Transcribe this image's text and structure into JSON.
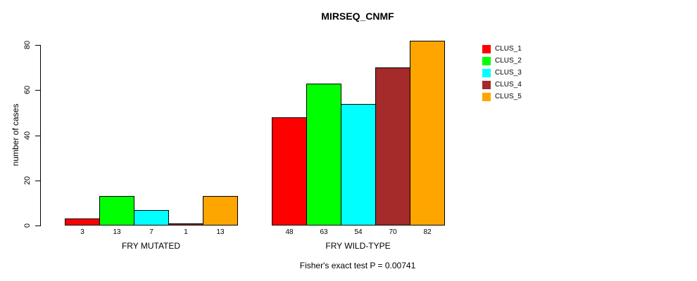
{
  "title": "MIRSEQ_CNMF",
  "chart_data": {
    "type": "bar",
    "title": "MIRSEQ_CNMF",
    "ylabel": "number of cases",
    "xlabel": "",
    "ylim": [
      0,
      80
    ],
    "yticks": [
      0,
      20,
      40,
      60,
      80
    ],
    "grid": false,
    "legend_position": "right",
    "bar_value_labels_shown": true,
    "categories": [
      "FRY MUTATED",
      "FRY WILD-TYPE"
    ],
    "groups": [
      {
        "label": "FRY MUTATED",
        "values": [
          3,
          13,
          7,
          1,
          13
        ]
      },
      {
        "label": "FRY WILD-TYPE",
        "values": [
          48,
          63,
          54,
          70,
          82
        ]
      }
    ],
    "series": [
      {
        "name": "CLUS_1",
        "color": "#FF0000",
        "values": [
          3,
          48
        ]
      },
      {
        "name": "CLUS_2",
        "color": "#00FF00",
        "values": [
          13,
          63
        ]
      },
      {
        "name": "CLUS_3",
        "color": "#00FFFF",
        "values": [
          7,
          54
        ]
      },
      {
        "name": "CLUS_4",
        "color": "#A52A2A",
        "values": [
          1,
          70
        ]
      },
      {
        "name": "CLUS_5",
        "color": "#FFA500",
        "values": [
          13,
          82
        ]
      }
    ],
    "annotation": "Fisher's exact test P = 0.00741"
  },
  "colors": {
    "background": "#FFFFFF",
    "axis": "#000000",
    "bar_border": "#000000",
    "text": "#000000"
  }
}
